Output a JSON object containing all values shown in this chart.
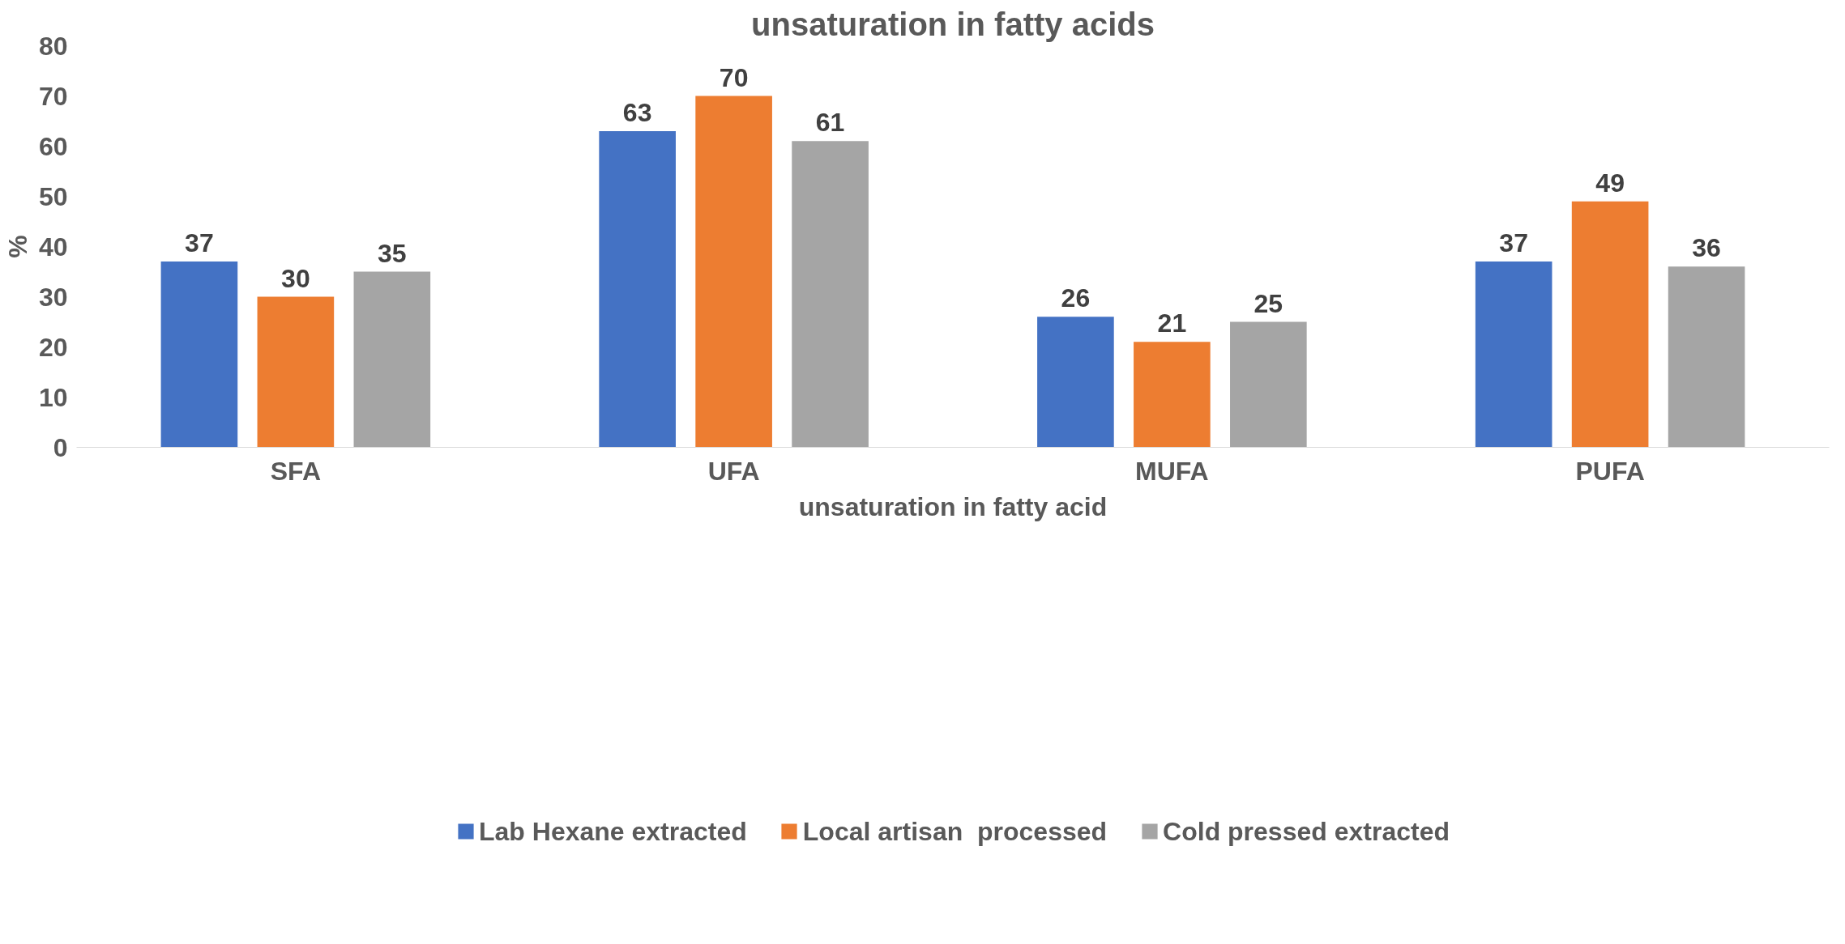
{
  "chart_data": {
    "type": "bar",
    "title": "unsaturation in fatty acids",
    "xlabel": "unsaturation in fatty acid",
    "ylabel": "%",
    "categories": [
      "SFA",
      "UFA",
      "MUFA",
      "PUFA"
    ],
    "series": [
      {
        "name": "Lab Hexane extracted",
        "color": "#4472c4",
        "values": [
          37,
          63,
          26,
          37
        ]
      },
      {
        "name": "Local artisan  processed",
        "color": "#ed7d31",
        "values": [
          30,
          70,
          21,
          49
        ]
      },
      {
        "name": "Cold pressed extracted",
        "color": "#a5a5a5",
        "values": [
          35,
          61,
          25,
          36
        ]
      }
    ],
    "ylim": [
      0,
      80
    ],
    "yticks": [
      0,
      10,
      20,
      30,
      40,
      50,
      60,
      70,
      80
    ],
    "grid": false,
    "legend": "bottom",
    "data_labels": true
  }
}
